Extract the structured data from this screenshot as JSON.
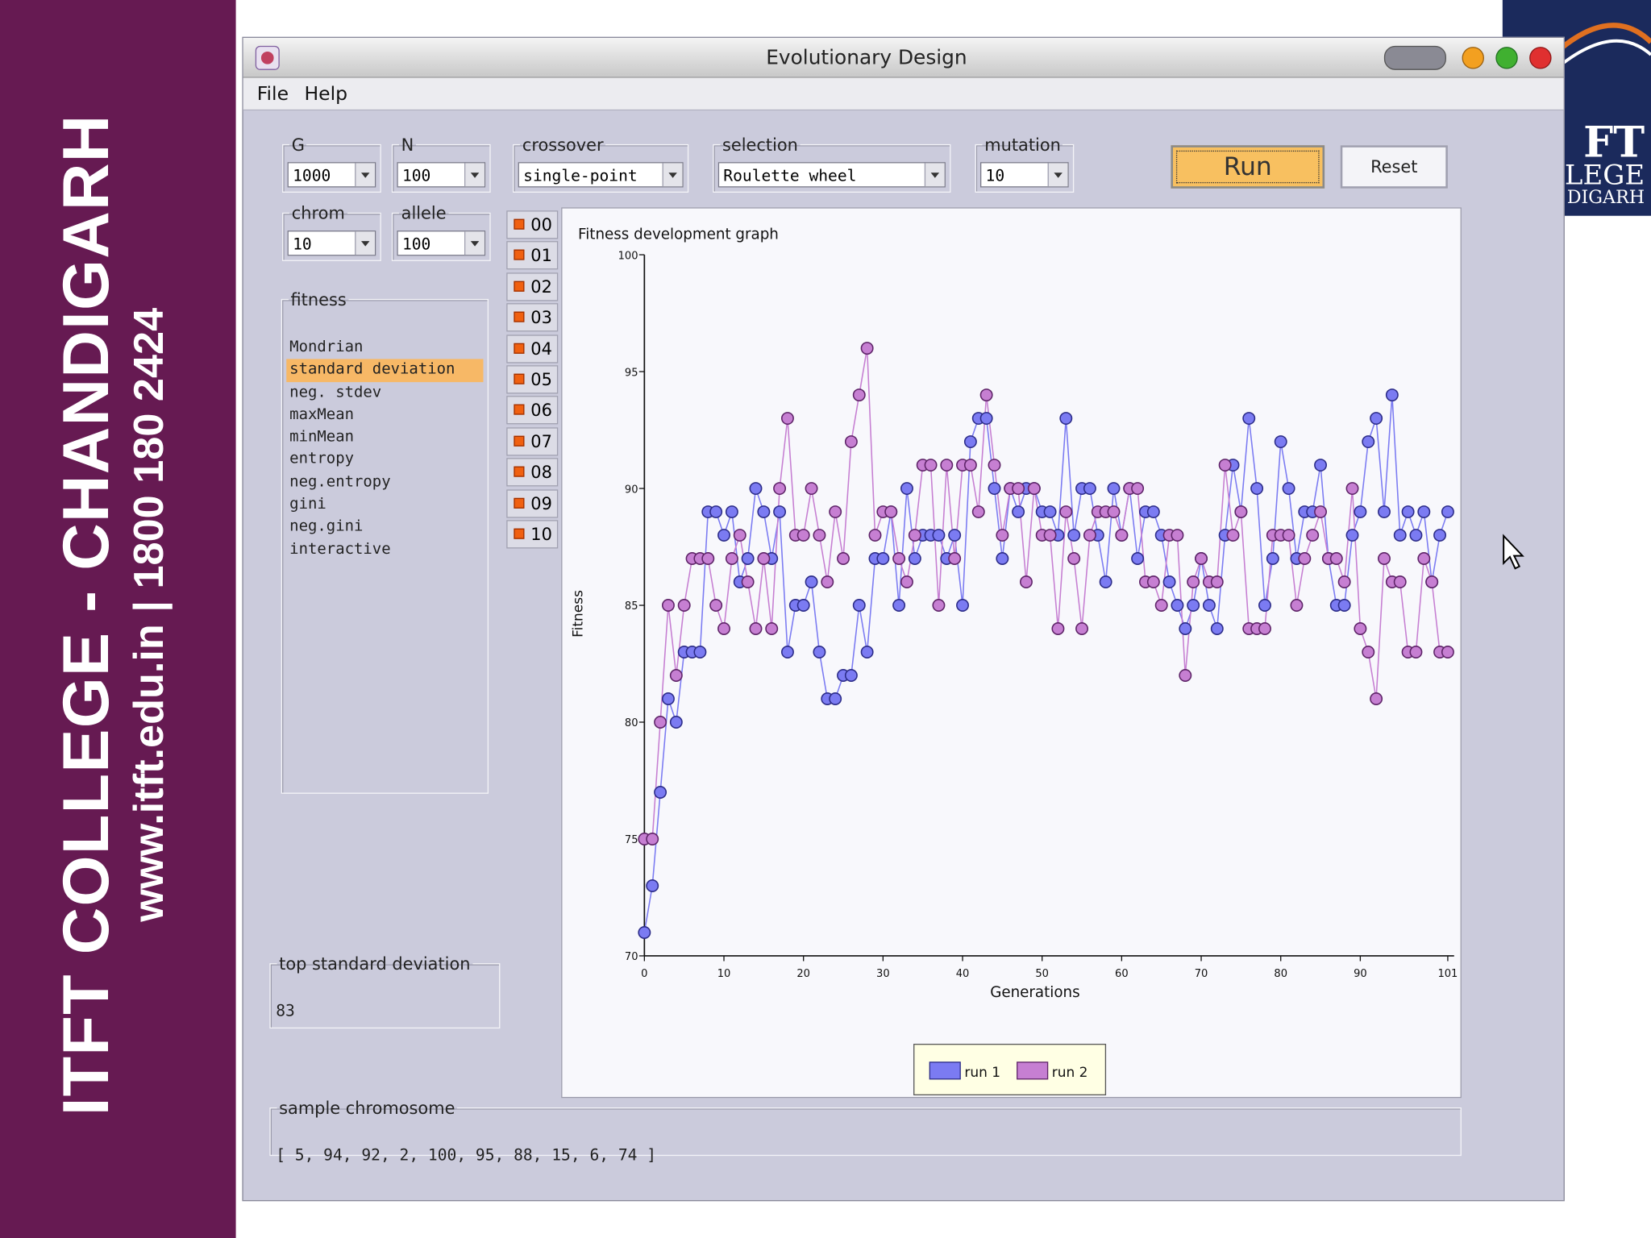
{
  "banner": {
    "college": "ITFT COLLEGE - CHANDIGARH",
    "contact": "www.itft.edu.in  | 1800 180 2424"
  },
  "logo": [
    "FT",
    "LEGE",
    "DIGARH"
  ],
  "window": {
    "title": "Evolutionary Design",
    "menu": [
      "File",
      "Help"
    ]
  },
  "controls": [
    {
      "label": "G",
      "value": "1000"
    },
    {
      "label": "N",
      "value": "100"
    },
    {
      "label": "crossover",
      "value": "single-point"
    },
    {
      "label": "selection",
      "value": "Roulette wheel"
    },
    {
      "label": "mutation",
      "value": "10"
    },
    {
      "label": "chrom",
      "value": "10"
    },
    {
      "label": "allele",
      "value": "100"
    }
  ],
  "buttons": {
    "run": "Run",
    "reset": "Reset"
  },
  "fitness": {
    "label": "fitness",
    "options": [
      "Mondrian",
      "standard deviation",
      "neg. stdev",
      "maxMean",
      "minMean",
      "entropy",
      "neg.entropy",
      "gini",
      "neg.gini",
      "interactive"
    ],
    "selected": 1
  },
  "run_tabs": [
    "00",
    "01",
    "02",
    "03",
    "04",
    "05",
    "06",
    "07",
    "08",
    "09",
    "10"
  ],
  "top": {
    "label": "top standard deviation",
    "value": "83"
  },
  "sample": {
    "label": "sample chromosome",
    "value": "[ 5, 94, 92, 2, 100, 95, 88, 15, 6, 74 ]"
  },
  "chart_data": {
    "type": "line",
    "title": "Fitness development graph",
    "x_label": "Generations",
    "y_label": "Fitness",
    "xlim": [
      0,
      101
    ],
    "xticks": [
      0,
      10,
      20,
      30,
      40,
      50,
      60,
      70,
      80,
      90,
      101
    ],
    "ylim": [
      70,
      100
    ],
    "yticks": [
      70,
      75,
      80,
      85,
      90,
      95,
      100
    ],
    "grid": false,
    "markers": true,
    "x": [
      0,
      1,
      2,
      3,
      4,
      5,
      6,
      7,
      8,
      9,
      10,
      11,
      12,
      13,
      14,
      15,
      16,
      17,
      18,
      19,
      20,
      21,
      22,
      23,
      24,
      25,
      26,
      27,
      28,
      29,
      30,
      31,
      32,
      33,
      34,
      35,
      36,
      37,
      38,
      39,
      40,
      41,
      42,
      43,
      44,
      45,
      46,
      47,
      48,
      49,
      50,
      51,
      52,
      53,
      54,
      55,
      56,
      57,
      58,
      59,
      60,
      61,
      62,
      63,
      64,
      65,
      66,
      67,
      68,
      69,
      70,
      71,
      72,
      73,
      74,
      75,
      76,
      77,
      78,
      79,
      80,
      81,
      82,
      83,
      84,
      85,
      86,
      87,
      88,
      89,
      90,
      91,
      92,
      93,
      94,
      95,
      96,
      97,
      98,
      99,
      100,
      101
    ],
    "series": [
      {
        "name": "run 1",
        "color": "#7b7bf2",
        "edge": "#2c2c88",
        "values": [
          71,
          73,
          77,
          81,
          80,
          83,
          83,
          83,
          89,
          89,
          88,
          89,
          86,
          87,
          90,
          89,
          87,
          89,
          83,
          85,
          85,
          86,
          83,
          81,
          81,
          82,
          82,
          85,
          83,
          87,
          87,
          89,
          85,
          90,
          87,
          88,
          88,
          88,
          87,
          88,
          85,
          92,
          93,
          93,
          90,
          87,
          90,
          89,
          90,
          90,
          89,
          89,
          88,
          93,
          88,
          90,
          90,
          88,
          86,
          90,
          88,
          90,
          87,
          89,
          89,
          88,
          86,
          85,
          84,
          85,
          87,
          85,
          84,
          88,
          91,
          89,
          93,
          90,
          85,
          87,
          92,
          90,
          87,
          89,
          89,
          91,
          87,
          85,
          85,
          88,
          89,
          92,
          93,
          89,
          94,
          88,
          89,
          88,
          89,
          86,
          88,
          89
        ]
      },
      {
        "name": "run 2",
        "color": "#c67fd2",
        "edge": "#5e2468",
        "values": [
          75,
          75,
          80,
          85,
          82,
          85,
          87,
          87,
          87,
          85,
          84,
          87,
          88,
          86,
          84,
          87,
          84,
          90,
          93,
          88,
          88,
          90,
          88,
          86,
          89,
          87,
          92,
          94,
          96,
          88,
          89,
          89,
          87,
          86,
          88,
          91,
          91,
          85,
          91,
          87,
          91,
          91,
          89,
          94,
          91,
          88,
          90,
          90,
          86,
          90,
          88,
          88,
          84,
          89,
          87,
          84,
          88,
          89,
          89,
          89,
          88,
          90,
          90,
          86,
          86,
          85,
          88,
          88,
          82,
          86,
          87,
          86,
          86,
          91,
          88,
          89,
          84,
          84,
          84,
          88,
          88,
          88,
          85,
          87,
          88,
          89,
          87,
          87,
          86,
          90,
          84,
          83,
          81,
          87,
          86,
          86,
          83,
          83,
          87,
          86,
          83,
          83
        ]
      }
    ]
  }
}
